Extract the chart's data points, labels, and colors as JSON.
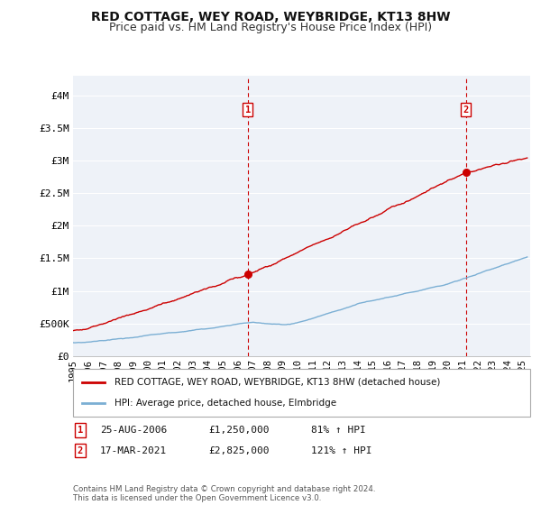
{
  "title": "RED COTTAGE, WEY ROAD, WEYBRIDGE, KT13 8HW",
  "subtitle": "Price paid vs. HM Land Registry's House Price Index (HPI)",
  "ytick_values": [
    0,
    500000,
    1000000,
    1500000,
    2000000,
    2500000,
    3000000,
    3500000,
    4000000
  ],
  "ylim": [
    0,
    4300000
  ],
  "xlim_start": 1995.0,
  "xlim_end": 2025.5,
  "red_line_color": "#cc0000",
  "blue_line_color": "#7bafd4",
  "transaction1_x": 2006.65,
  "transaction1_y": 1250000,
  "transaction1_label": "1",
  "transaction2_x": 2021.21,
  "transaction2_y": 2825000,
  "transaction2_label": "2",
  "vline_color": "#cc0000",
  "legend_label_red": "RED COTTAGE, WEY ROAD, WEYBRIDGE, KT13 8HW (detached house)",
  "legend_label_blue": "HPI: Average price, detached house, Elmbridge",
  "table_row1": [
    "1",
    "25-AUG-2006",
    "£1,250,000",
    "81% ↑ HPI"
  ],
  "table_row2": [
    "2",
    "17-MAR-2021",
    "£2,825,000",
    "121% ↑ HPI"
  ],
  "footer": "Contains HM Land Registry data © Crown copyright and database right 2024.\nThis data is licensed under the Open Government Licence v3.0.",
  "background_color": "#ffffff",
  "chart_bg": "#eef2f8",
  "grid_color": "#ffffff",
  "title_fontsize": 10,
  "subtitle_fontsize": 9,
  "tick_fontsize": 7.5,
  "xticks": [
    1995,
    1996,
    1997,
    1998,
    1999,
    2000,
    2001,
    2002,
    2003,
    2004,
    2005,
    2006,
    2007,
    2008,
    2009,
    2010,
    2011,
    2012,
    2013,
    2014,
    2015,
    2016,
    2017,
    2018,
    2019,
    2020,
    2021,
    2022,
    2023,
    2024,
    2025
  ]
}
